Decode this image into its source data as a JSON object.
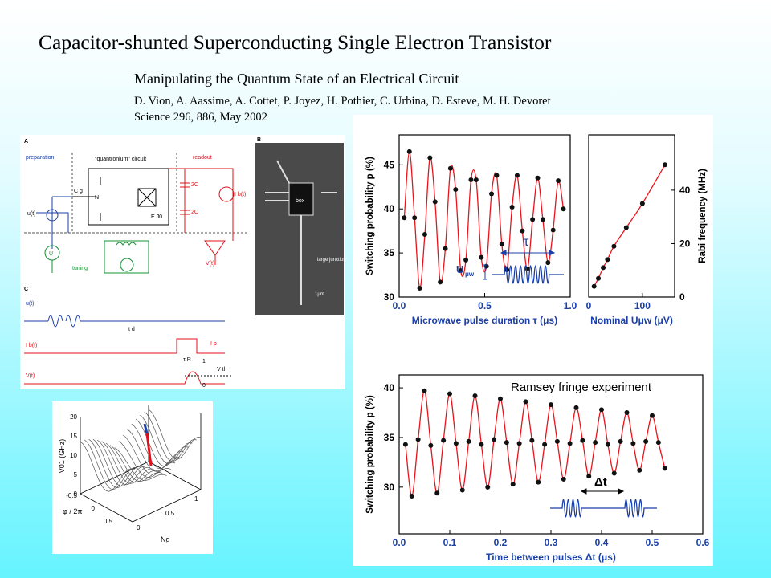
{
  "title": "Capacitor-shunted Superconducting Single Electron Transistor",
  "subtitle": "Manipulating the Quantum State of an Electrical Circuit",
  "authors": "D. Vion, A. Aassime, A. Cottet, P. Joyez, H. Pothier, C. Urbina, D. Esteve, M. H. Devoret",
  "citation": "Science 296, 886, May 2002",
  "circuit_figure": {
    "panels": [
      "A",
      "B",
      "C"
    ],
    "labels": [
      "preparation",
      "\"quantronium\" circuit",
      "readout",
      "tuning",
      "u(t)",
      "U",
      "C g",
      "N",
      "E J0",
      "2C",
      "2C",
      "V(t)",
      "I b(t)",
      "box",
      "large junction",
      "1μm",
      "u(t)",
      "I b(t)",
      "V(t)",
      "t d",
      "τ R",
      "I p",
      "V th",
      "1",
      "0"
    ]
  },
  "surface_plot": {
    "z_label": "V01 (GHz)",
    "zticks": [
      "0",
      "5",
      "10",
      "15",
      "20"
    ],
    "x_label": "φ / 2π",
    "xticks": [
      "0.5",
      "0",
      "-0.5"
    ],
    "y_label": "Ng",
    "yticks": [
      "0",
      "0.5",
      "1"
    ]
  },
  "chart_data": [
    {
      "type": "scatter",
      "y_label": "Switching probability p (%)",
      "x_label": "Microwave pulse duration τ (μs)",
      "annotations": [
        "τ",
        "U",
        "μw"
      ],
      "x": [
        0.03,
        0.06,
        0.09,
        0.12,
        0.15,
        0.18,
        0.21,
        0.24,
        0.27,
        0.3,
        0.33,
        0.36,
        0.39,
        0.42,
        0.45,
        0.48,
        0.51,
        0.54,
        0.57,
        0.6,
        0.63,
        0.66,
        0.69,
        0.72,
        0.75,
        0.78,
        0.81,
        0.84,
        0.87,
        0.9,
        0.93,
        0.96
      ],
      "series": [
        {
          "color": "#111111",
          "line_color": "#e8141c",
          "values": [
            39.0,
            46.5,
            39.0,
            31.0,
            37.1,
            45.8,
            40.8,
            31.7,
            35.5,
            44.6,
            42.2,
            33.0,
            34.2,
            43.3,
            43.3,
            34.5,
            33.5,
            41.7,
            43.8,
            36.0,
            33.1,
            40.2,
            43.8,
            37.5,
            33.2,
            38.8,
            43.5,
            38.8,
            33.9,
            37.6,
            43.2,
            40.0
          ]
        }
      ],
      "xlim": [
        0,
        1.0
      ],
      "ylim": [
        30,
        48.4
      ],
      "xticks": [
        {
          "value": 0,
          "label": "0.0"
        },
        0.5,
        {
          "value": 1,
          "label": "1.0"
        }
      ],
      "yticks": [
        30,
        35,
        40,
        45
      ],
      "y_axis_side": "left"
    },
    {
      "type": "scatter",
      "y_label": "Rabi frequency (MHz)",
      "x_label": "Nominal Uμw (μV)",
      "annotations": [],
      "x": [
        10,
        18,
        27,
        35,
        47,
        70,
        100,
        142
      ],
      "series": [
        {
          "color": "#111111",
          "line_color": "#e8141c",
          "values": [
            4,
            7,
            11,
            14,
            19,
            26,
            35,
            49.5
          ]
        }
      ],
      "xlim": [
        0,
        160
      ],
      "ylim": [
        0,
        60.7
      ],
      "xticks": [
        0,
        100
      ],
      "yticks": [
        0,
        20,
        40
      ],
      "y_axis_side": "right"
    },
    {
      "type": "scatter",
      "y_label": "Switching probability p (%)",
      "x_label": "Time between pulses Δt (μs)",
      "annotations": [
        "Ramsey fringe experiment",
        "Δt"
      ],
      "x": [
        0.0125,
        0.025,
        0.0375,
        0.05,
        0.0625,
        0.075,
        0.0875,
        0.1,
        0.1125,
        0.125,
        0.1375,
        0.15,
        0.1625,
        0.175,
        0.1875,
        0.2,
        0.2125,
        0.225,
        0.2375,
        0.25,
        0.2625,
        0.275,
        0.2875,
        0.3,
        0.3125,
        0.325,
        0.3375,
        0.35,
        0.3625,
        0.375,
        0.3875,
        0.4,
        0.4125,
        0.425,
        0.4375,
        0.45,
        0.4625,
        0.475,
        0.4875,
        0.5,
        0.5125,
        0.525
      ],
      "series": [
        {
          "color": "#111111",
          "line_color": "#e8141c",
          "values": [
            34.3,
            29.1,
            34.8,
            39.7,
            34.2,
            29.4,
            34.7,
            39.4,
            34.4,
            29.7,
            34.6,
            39.2,
            34.3,
            30.0,
            34.8,
            38.9,
            34.5,
            30.3,
            34.4,
            38.6,
            34.7,
            30.5,
            34.3,
            38.3,
            34.6,
            30.8,
            34.4,
            38.0,
            34.7,
            31.1,
            34.5,
            37.8,
            34.3,
            31.4,
            34.6,
            37.5,
            34.4,
            31.7,
            34.6,
            37.2,
            34.5,
            31.9
          ]
        }
      ],
      "xlim": [
        0,
        0.6
      ],
      "ylim": [
        25.3,
        41.3
      ],
      "xticks": [
        {
          "value": 0,
          "label": "0.0"
        },
        0.1,
        0.2,
        0.3,
        0.4,
        0.5,
        0.6
      ],
      "yticks": [
        30,
        35,
        40
      ],
      "y_axis_side": "left"
    }
  ]
}
